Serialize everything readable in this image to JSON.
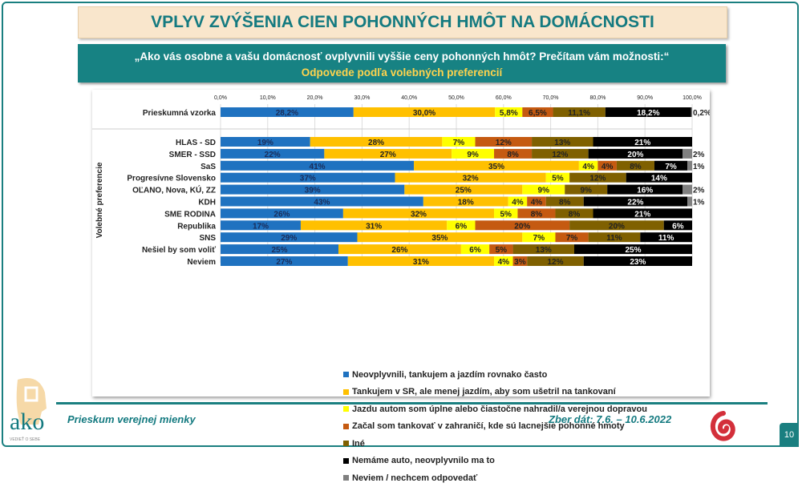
{
  "title": "VPLYV ZVÝŠENIA CIEN POHONNÝCH HMÔT NA DOMÁCNOSTI",
  "question": "„Ako vás osobne a vašu domácnosť ovplyvnili vyššie ceny pohonných hmôt? Prečítam vám možnosti:“",
  "subtitle": "Odpovede podľa volebných preferencií",
  "footer": {
    "left": "Prieskum verejnej mienky",
    "right": "Zber dát: 7.6. – 10.6.2022",
    "page": "10",
    "logo_text": "ako",
    "logo_tagline": "VEDIEŤ O SEBE"
  },
  "chart_data": {
    "type": "bar",
    "orientation": "horizontal",
    "stacked": true,
    "grid": true,
    "legend_placement": "bottom",
    "ylabel": "Volebné preferencie",
    "xlim": [
      0,
      100
    ],
    "xticks": [
      "0,0%",
      "10,0%",
      "20,0%",
      "30,0%",
      "40,0%",
      "50,0%",
      "60,0%",
      "70,0%",
      "80,0%",
      "90,0%",
      "100,0%"
    ],
    "categories": [
      "Prieskumná vzorka",
      "HLAS - SD",
      "SMER - SSD",
      "SaS",
      "Progresívne Slovensko",
      "OĽANO, Nova, KÚ, ZZ",
      "KDH",
      "SME RODINA",
      "Republika",
      "SNS",
      "Nešiel by som voliť",
      "Neviem"
    ],
    "series": [
      {
        "name": "Neovplyvnili, tankujem a jazdím rovnako často",
        "color": "#1f72c0",
        "values": [
          28.2,
          19,
          22,
          41,
          37,
          39,
          43,
          26,
          17,
          29,
          25,
          27
        ]
      },
      {
        "name": "Tankujem v SR, ale menej jazdím, aby som ušetril na tankovaní",
        "color": "#ffc000",
        "values": [
          30.0,
          28,
          27,
          35,
          32,
          25,
          18,
          32,
          31,
          35,
          26,
          31
        ]
      },
      {
        "name": "Jazdu autom som úplne alebo čiastočne nahradil/a verejnou dopravou",
        "color": "#ffff00",
        "values": [
          5.8,
          7,
          9,
          4,
          5,
          9,
          4,
          5,
          6,
          7,
          6,
          4
        ]
      },
      {
        "name": "Začal som tankovať v zahraničí, kde sú lacnejšie pohonné hmoty",
        "color": "#c55a11",
        "values": [
          6.5,
          12,
          8,
          4,
          0,
          0,
          4,
          8,
          20,
          7,
          5,
          3
        ]
      },
      {
        "name": "Iné",
        "color": "#7f6000",
        "values": [
          11.1,
          13,
          12,
          8,
          12,
          9,
          8,
          8,
          20,
          11,
          13,
          12
        ]
      },
      {
        "name": "Nemáme auto, neovplyvnilo ma to",
        "color": "#000000",
        "values": [
          18.2,
          21,
          20,
          7,
          14,
          16,
          22,
          21,
          6,
          11,
          25,
          23
        ]
      },
      {
        "name": "Neviem / nechcem odpovedať",
        "color": "#808080",
        "values": [
          0.2,
          0,
          2,
          1,
          0,
          2,
          1,
          0,
          0,
          0,
          0,
          0
        ]
      }
    ]
  }
}
